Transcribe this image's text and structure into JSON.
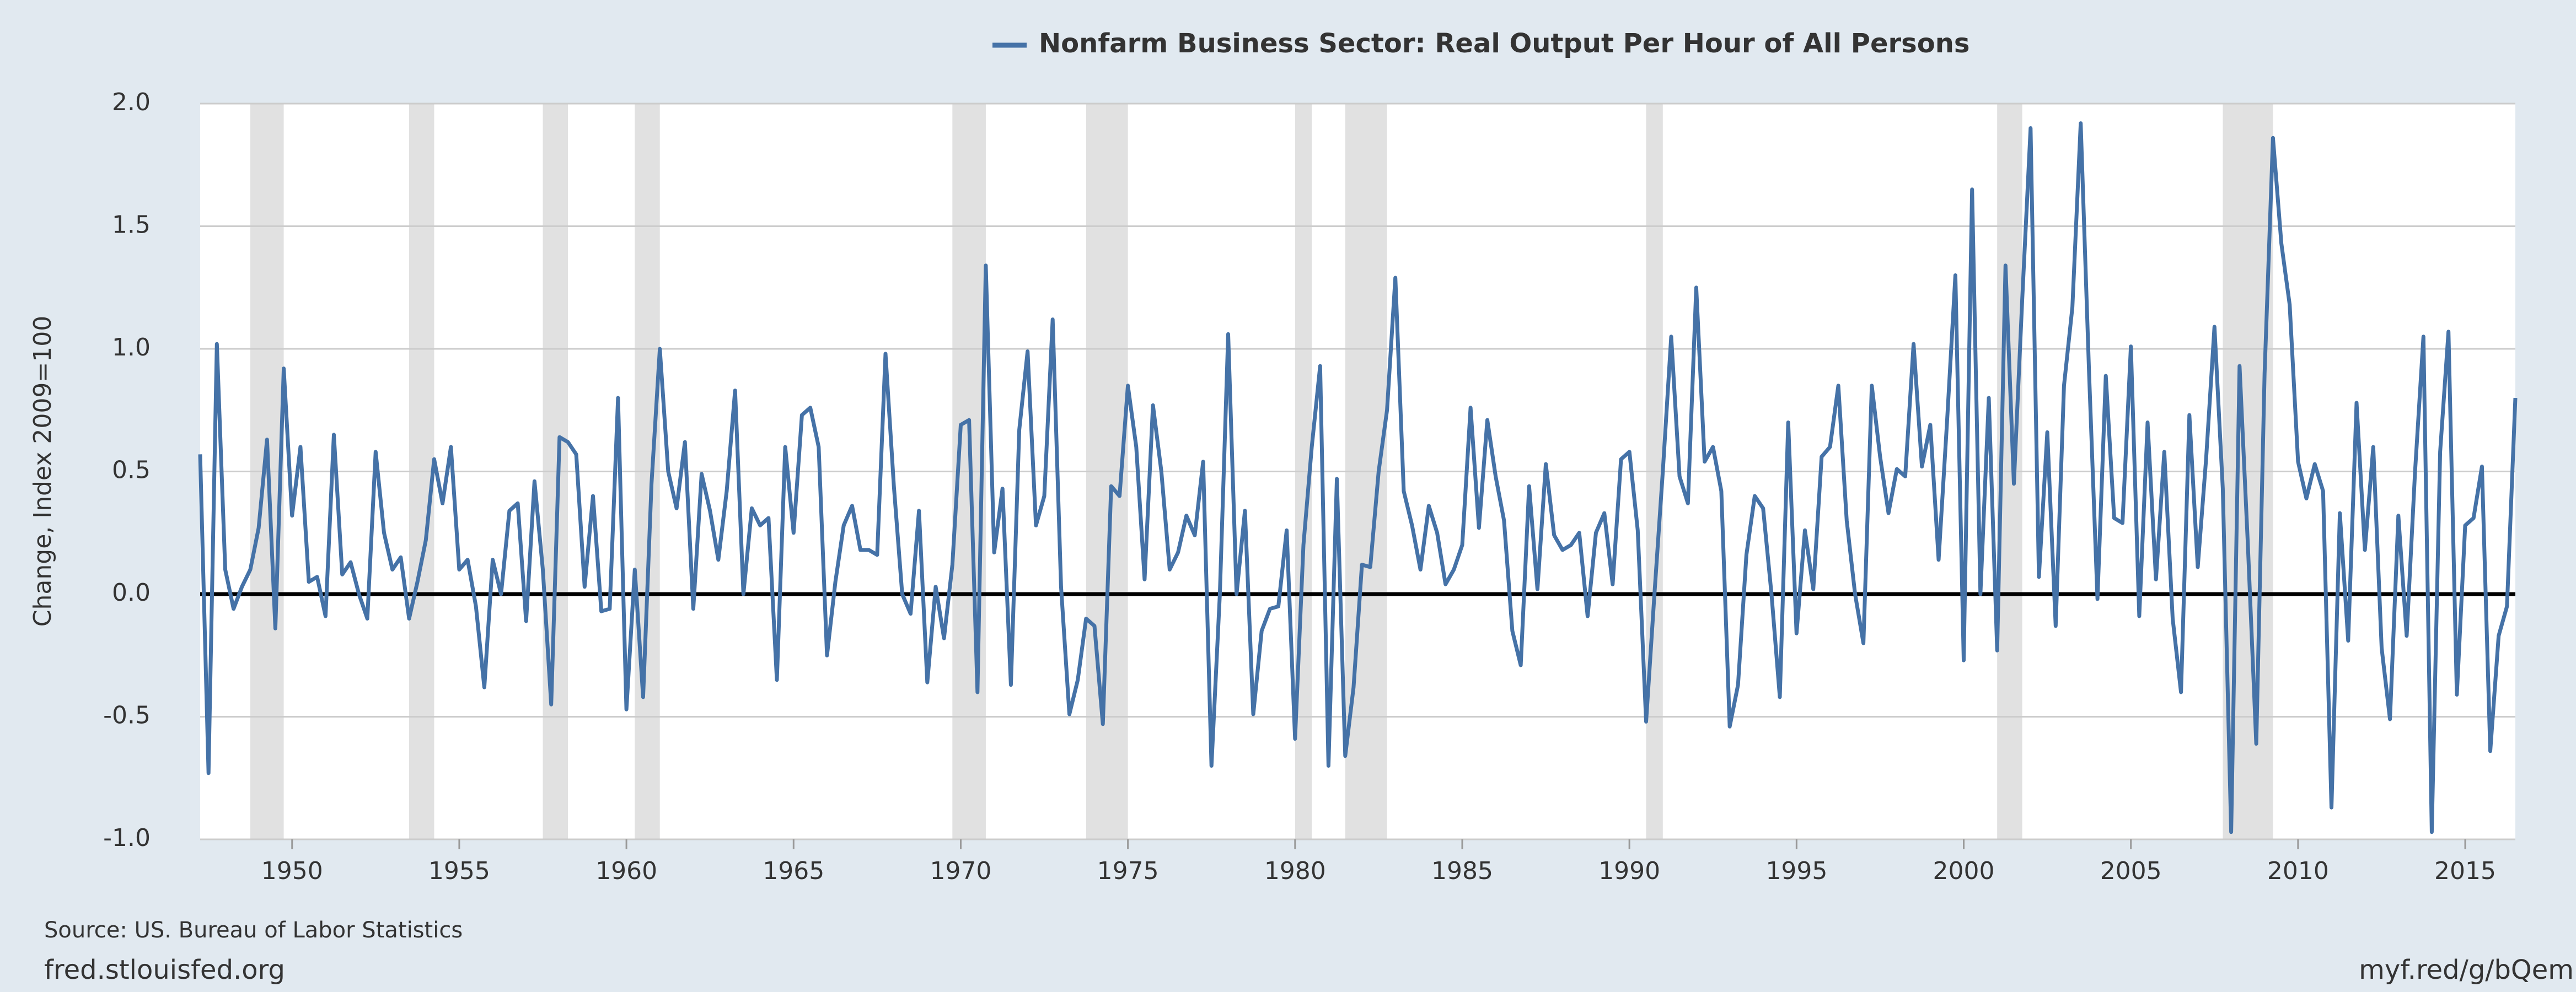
{
  "chart_data": {
    "type": "line",
    "series": [
      {
        "name": "Nonfarm Business Sector: Real Output Per Hour of All Persons",
        "color": "#4572a7",
        "values": [
          0.57,
          -0.73,
          1.02,
          0.1,
          -0.06,
          0.03,
          0.1,
          0.27,
          0.63,
          -0.14,
          0.92,
          0.32,
          0.6,
          0.05,
          0.07,
          -0.09,
          0.65,
          0.08,
          0.13,
          0.0,
          -0.1,
          0.58,
          0.25,
          0.1,
          0.15,
          -0.1,
          0.05,
          0.22,
          0.55,
          0.37,
          0.6,
          0.1,
          0.14,
          -0.05,
          -0.38,
          0.14,
          0.0,
          0.34,
          0.37,
          -0.11,
          0.46,
          0.1,
          -0.45,
          0.64,
          0.62,
          0.57,
          0.03,
          0.4,
          -0.07,
          -0.06,
          0.8,
          -0.47,
          0.1,
          -0.42,
          0.45,
          1.0,
          0.5,
          0.35,
          0.62,
          -0.06,
          0.49,
          0.34,
          0.14,
          0.42,
          0.83,
          0.0,
          0.35,
          0.28,
          0.31,
          -0.35,
          0.6,
          0.25,
          0.73,
          0.76,
          0.6,
          -0.25,
          0.05,
          0.28,
          0.36,
          0.18,
          0.18,
          0.16,
          0.98,
          0.44,
          0.0,
          -0.08,
          0.34,
          -0.36,
          0.03,
          -0.18,
          0.12,
          0.69,
          0.71,
          -0.4,
          1.34,
          0.17,
          0.43,
          -0.37,
          0.67,
          0.99,
          0.28,
          0.4,
          1.12,
          0.03,
          -0.49,
          -0.35,
          -0.1,
          -0.13,
          -0.53,
          0.44,
          0.4,
          0.85,
          0.6,
          0.06,
          0.77,
          0.5,
          0.1,
          0.17,
          0.32,
          0.24,
          0.54,
          -0.7,
          0.0,
          1.06,
          0.0,
          0.34,
          -0.49,
          -0.15,
          -0.06,
          -0.05,
          0.26,
          -0.59,
          0.2,
          0.6,
          0.93,
          -0.7,
          0.47,
          -0.66,
          -0.38,
          0.12,
          0.11,
          0.5,
          0.75,
          1.29,
          0.42,
          0.28,
          0.1,
          0.36,
          0.25,
          0.04,
          0.1,
          0.2,
          0.76,
          0.27,
          0.71,
          0.48,
          0.3,
          -0.15,
          -0.29,
          0.44,
          0.02,
          0.53,
          0.24,
          0.18,
          0.2,
          0.25,
          -0.09,
          0.25,
          0.33,
          0.04,
          0.55,
          0.58,
          0.26,
          -0.52,
          0.0,
          0.5,
          1.05,
          0.48,
          0.37,
          1.25,
          0.54,
          0.6,
          0.42,
          -0.54,
          -0.37,
          0.16,
          0.4,
          0.35,
          0.0,
          -0.42,
          0.7,
          -0.16,
          0.26,
          0.02,
          0.56,
          0.6,
          0.85,
          0.3,
          0.0,
          -0.2,
          0.85,
          0.56,
          0.33,
          0.51,
          0.48,
          1.02,
          0.52,
          0.69,
          0.14,
          0.7,
          1.3,
          -0.27,
          1.65,
          0.0,
          0.8,
          -0.23,
          1.34,
          0.45,
          1.2,
          1.9,
          0.07,
          0.66,
          -0.13,
          0.85,
          1.17,
          1.92,
          0.9,
          -0.02,
          0.89,
          0.31,
          0.29,
          1.01,
          -0.09,
          0.7,
          0.06,
          0.58,
          -0.1,
          -0.4,
          0.73,
          0.11,
          0.55,
          1.09,
          0.43,
          -0.97,
          0.93,
          0.2,
          -0.61,
          0.9,
          1.86,
          1.43,
          1.18,
          0.54,
          0.39,
          0.53,
          0.42,
          -0.87,
          0.33,
          -0.19,
          0.78,
          0.18,
          0.6,
          -0.22,
          -0.51,
          0.32,
          -0.17,
          0.5,
          1.05,
          -0.97,
          0.58,
          1.07,
          -0.41,
          0.28,
          0.31,
          0.52,
          -0.64,
          -0.17,
          -0.05,
          0.8
        ]
      }
    ],
    "x": [
      1947.25,
      1947.5,
      1947.75,
      1948,
      1948.25,
      1948.5,
      1948.75,
      1949,
      1949.25,
      1949.5,
      1949.75,
      1950,
      1950.25,
      1950.5,
      1950.75,
      1951,
      1951.25,
      1951.5,
      1951.75,
      1952,
      1952.25,
      1952.5,
      1952.75,
      1953,
      1953.25,
      1953.5,
      1953.75,
      1954,
      1954.25,
      1954.5,
      1954.75,
      1955,
      1955.25,
      1955.5,
      1955.75,
      1956,
      1956.25,
      1956.5,
      1956.75,
      1957,
      1957.25,
      1957.5,
      1957.75,
      1958,
      1958.25,
      1958.5,
      1958.75,
      1959,
      1959.25,
      1959.5,
      1959.75,
      1960,
      1960.25,
      1960.5,
      1960.75,
      1961,
      1961.25,
      1961.5,
      1961.75,
      1962,
      1962.25,
      1962.5,
      1962.75,
      1963,
      1963.25,
      1963.5,
      1963.75,
      1964,
      1964.25,
      1964.5,
      1964.75,
      1965,
      1965.25,
      1965.5,
      1965.75,
      1966,
      1966.25,
      1966.5,
      1966.75,
      1967,
      1967.25,
      1967.5,
      1967.75,
      1968,
      1968.25,
      1968.5,
      1968.75,
      1969,
      1969.25,
      1969.5,
      1969.75,
      1970,
      1970.25,
      1970.5,
      1970.75,
      1971,
      1971.25,
      1971.5,
      1971.75,
      1972,
      1972.25,
      1972.5,
      1972.75,
      1973,
      1973.25,
      1973.5,
      1973.75,
      1974,
      1974.25,
      1974.5,
      1974.75,
      1975,
      1975.25,
      1975.5,
      1975.75,
      1976,
      1976.25,
      1976.5,
      1976.75,
      1977,
      1977.25,
      1977.5,
      1977.75,
      1978,
      1978.25,
      1978.5,
      1978.75,
      1979,
      1979.25,
      1979.5,
      1979.75,
      1980,
      1980.25,
      1980.5,
      1980.75,
      1981,
      1981.25,
      1981.5,
      1981.75,
      1982,
      1982.25,
      1982.5,
      1982.75,
      1983,
      1983.25,
      1983.5,
      1983.75,
      1984,
      1984.25,
      1984.5,
      1984.75,
      1985,
      1985.25,
      1985.5,
      1985.75,
      1986,
      1986.25,
      1986.5,
      1986.75,
      1987,
      1987.25,
      1987.5,
      1987.75,
      1988,
      1988.25,
      1988.5,
      1988.75,
      1989,
      1989.25,
      1989.5,
      1989.75,
      1990,
      1990.25,
      1990.5,
      1990.75,
      1991,
      1991.25,
      1991.5,
      1991.75,
      1992,
      1992.25,
      1992.5,
      1992.75,
      1993,
      1993.25,
      1993.5,
      1993.75,
      1994,
      1994.25,
      1994.5,
      1994.75,
      1995,
      1995.25,
      1995.5,
      1995.75,
      1996,
      1996.25,
      1996.5,
      1996.75,
      1997,
      1997.25,
      1997.5,
      1997.75,
      1998,
      1998.25,
      1998.5,
      1998.75,
      1999,
      1999.25,
      1999.5,
      1999.75,
      2000,
      2000.25,
      2000.5,
      2000.75,
      2001,
      2001.25,
      2001.5,
      2001.75,
      2002,
      2002.25,
      2002.5,
      2002.75,
      2003,
      2003.25,
      2003.5,
      2003.75,
      2004,
      2004.25,
      2004.5,
      2004.75,
      2005,
      2005.25,
      2005.5,
      2005.75,
      2006,
      2006.25,
      2006.5,
      2006.75,
      2007,
      2007.25,
      2007.5,
      2007.75,
      2008,
      2008.25,
      2008.5,
      2008.75,
      2009,
      2009.25,
      2009.5,
      2009.75,
      2010,
      2010.25,
      2010.5,
      2010.75,
      2011,
      2011.25,
      2011.5,
      2011.75,
      2012,
      2012.25,
      2012.5,
      2012.75,
      2013,
      2013.25,
      2013.5,
      2013.75,
      2014,
      2014.25,
      2014.5,
      2014.75,
      2015,
      2015.25,
      2015.5,
      2015.75,
      2016,
      2016.25,
      2016.5
    ],
    "recessions": [
      [
        1948.75,
        1949.75
      ],
      [
        1953.5,
        1954.25
      ],
      [
        1957.5,
        1958.25
      ],
      [
        1960.25,
        1961
      ],
      [
        1969.75,
        1970.75
      ],
      [
        1973.75,
        1975
      ],
      [
        1980,
        1980.5
      ],
      [
        1981.5,
        1982.75
      ],
      [
        1990.5,
        1991
      ],
      [
        2001,
        2001.75
      ],
      [
        2007.75,
        2009.25
      ]
    ],
    "recession_color": "#e1e1e1",
    "ylabel": "Change, Index 2009=100",
    "xlim": [
      1947.25,
      2016.5
    ],
    "xticks": [
      1950,
      1955,
      1960,
      1965,
      1970,
      1975,
      1980,
      1985,
      1990,
      1995,
      2000,
      2005,
      2010,
      2015
    ],
    "ylim": [
      -1,
      2
    ],
    "yticks": [
      {
        "value": -1,
        "label": "-1.0"
      },
      -0.5,
      {
        "value": 0,
        "label": "0.0"
      },
      0.5,
      {
        "value": 1,
        "label": "1.0"
      },
      1.5,
      {
        "value": 2,
        "label": "2.0"
      }
    ],
    "grid": true,
    "legend": "top",
    "source": "Source: US. Bureau of Labor Statistics",
    "site": "fred.stlouisfed.org",
    "link": "myf.red/g/bQem"
  }
}
